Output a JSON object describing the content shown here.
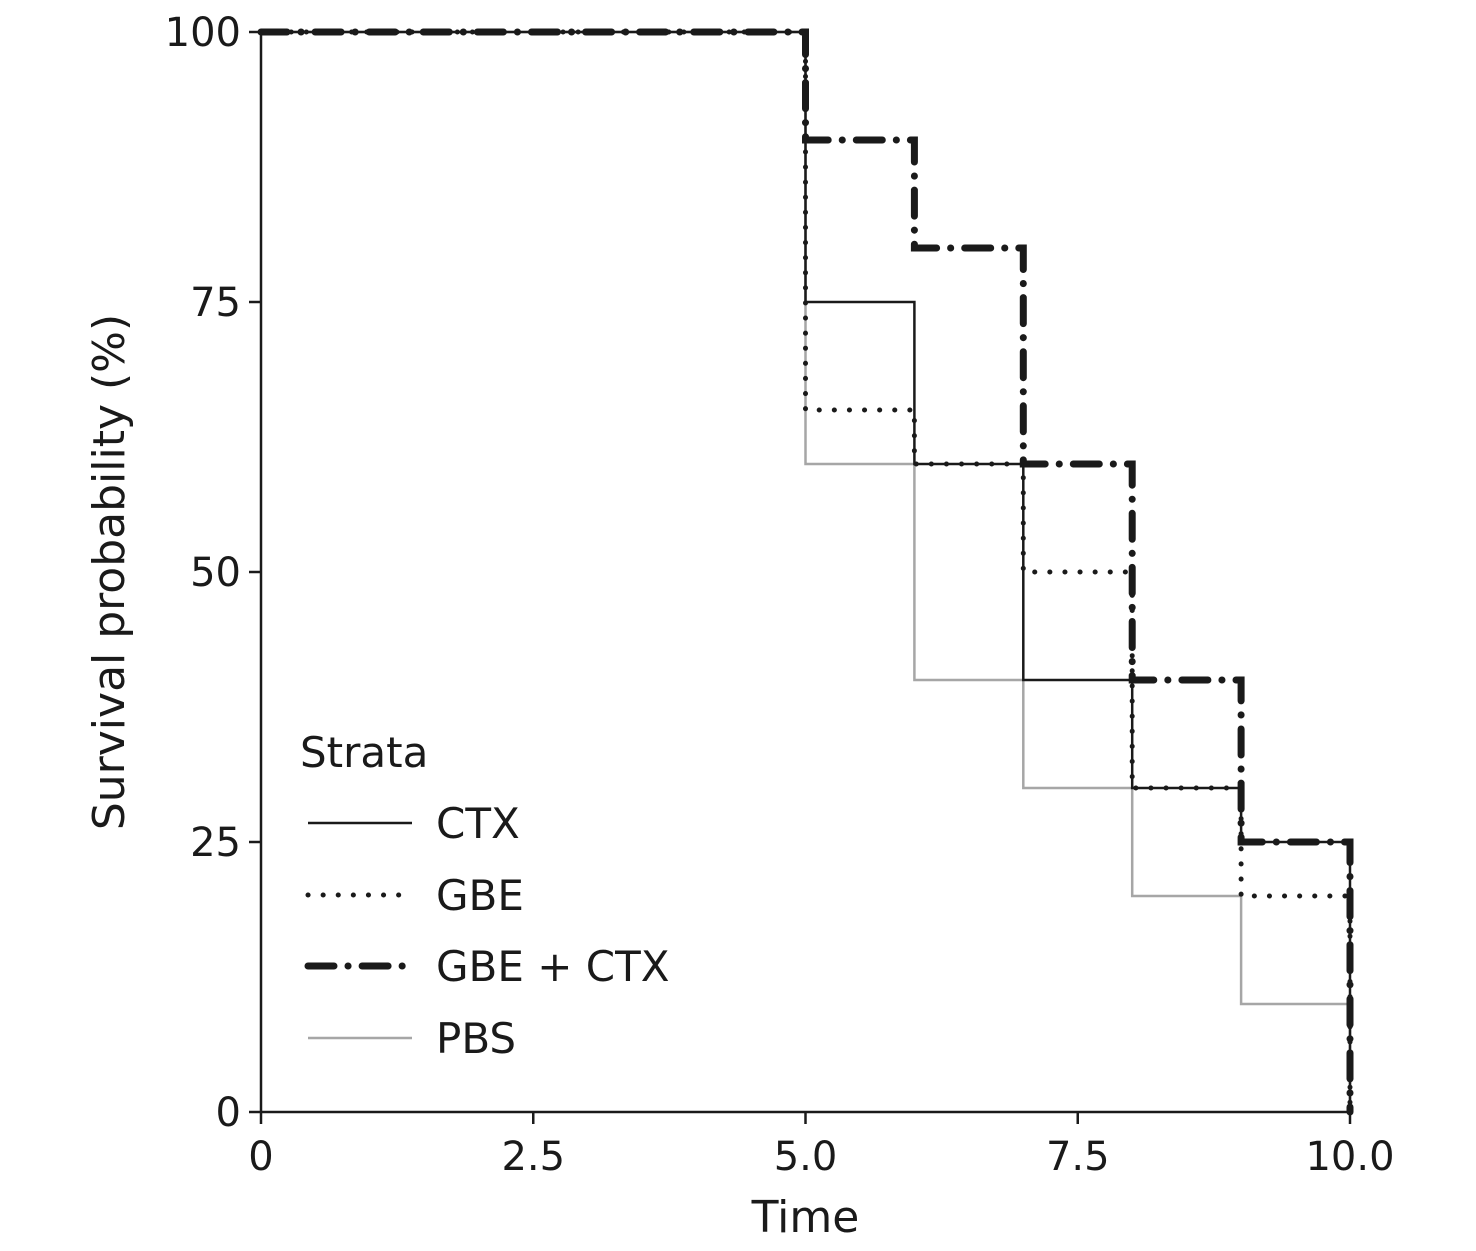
{
  "chart_data": {
    "type": "line",
    "subtype": "kaplan-meier-step",
    "title": "",
    "xlabel": "Time",
    "ylabel": "Survival probability (%)",
    "xlim": [
      0,
      10
    ],
    "ylim": [
      0,
      100
    ],
    "x_ticks": [
      0,
      2.5,
      5,
      7.5,
      10
    ],
    "x_tick_labels": [
      "0",
      "2.5",
      "5.0",
      "7.5",
      "10.0"
    ],
    "y_ticks": [
      0,
      25,
      50,
      75,
      100
    ],
    "y_tick_labels": [
      "0",
      "25",
      "50",
      "75",
      "100"
    ],
    "grid": false,
    "legend": {
      "title": "Strata",
      "placement": "bottom-left",
      "entries": [
        "CTX",
        "GBE",
        "GBE + CTX",
        "PBS"
      ]
    },
    "series": [
      {
        "name": "CTX",
        "style": "solid",
        "color": "#1a1a1a",
        "points": [
          [
            0,
            100
          ],
          [
            5,
            75
          ],
          [
            6,
            60
          ],
          [
            7,
            40
          ],
          [
            8,
            30
          ],
          [
            9,
            25
          ],
          [
            10,
            0
          ]
        ]
      },
      {
        "name": "GBE",
        "style": "dotted",
        "color": "#1a1a1a",
        "points": [
          [
            0,
            100
          ],
          [
            5,
            65
          ],
          [
            6,
            60
          ],
          [
            7,
            50
          ],
          [
            8,
            30
          ],
          [
            9,
            20
          ],
          [
            10,
            0
          ]
        ]
      },
      {
        "name": "GBE + CTX",
        "style": "dashdot",
        "color": "#1a1a1a",
        "points": [
          [
            0,
            100
          ],
          [
            5,
            90
          ],
          [
            6,
            80
          ],
          [
            7,
            60
          ],
          [
            8,
            40
          ],
          [
            9,
            25
          ],
          [
            10,
            0
          ]
        ]
      },
      {
        "name": "PBS",
        "style": "solid-light",
        "color": "#a6a6a6",
        "points": [
          [
            0,
            100
          ],
          [
            5,
            60
          ],
          [
            6,
            40
          ],
          [
            7,
            30
          ],
          [
            8,
            20
          ],
          [
            9,
            10
          ],
          [
            10,
            0
          ]
        ]
      }
    ]
  }
}
